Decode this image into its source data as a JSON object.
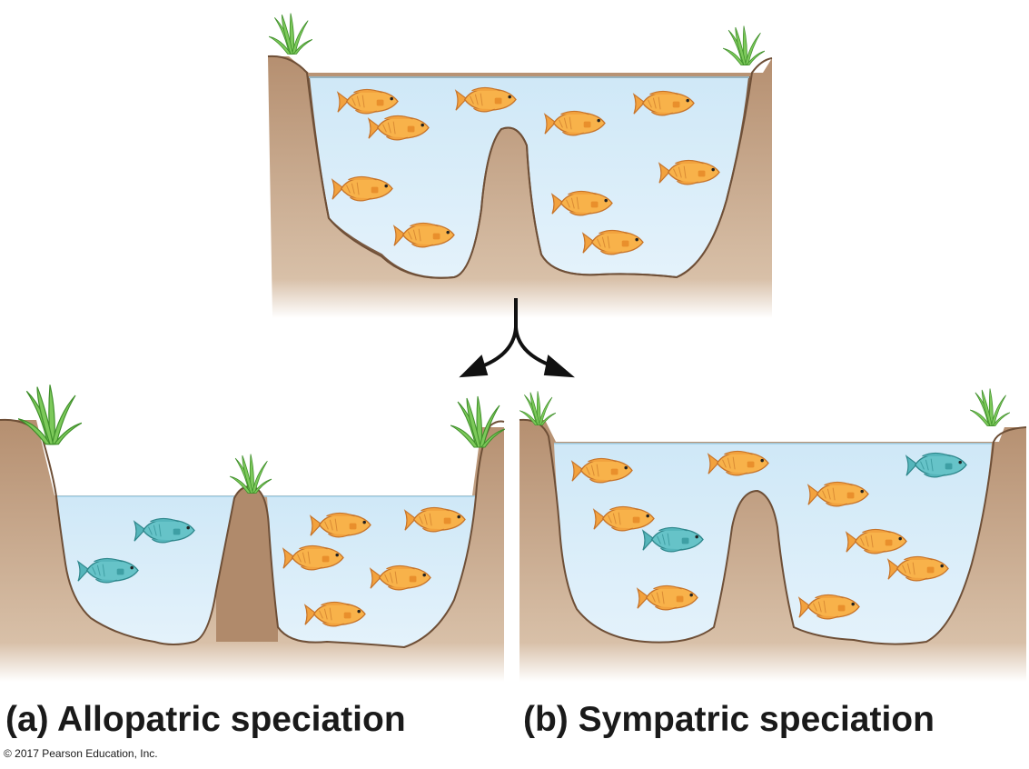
{
  "captions": {
    "allopatric": "(a) Allopatric speciation",
    "sympatric": "(b) Sympatric speciation"
  },
  "copyright": "© 2017 Pearson Education, Inc.",
  "colors": {
    "water": "#d8ecf8",
    "water_edge": "#9fd0ea",
    "soil": "#c9a98a",
    "soil_dark": "#a47f60",
    "soil_outline": "#7d5c43",
    "grass": "#6cc04a",
    "orange_fish": "#f8b24a",
    "teal_fish": "#5fbfc4",
    "arrow": "#111111"
  },
  "icons": [
    "orange-fish-icon",
    "teal-fish-icon",
    "grass-tuft-icon",
    "split-arrow-icon"
  ]
}
